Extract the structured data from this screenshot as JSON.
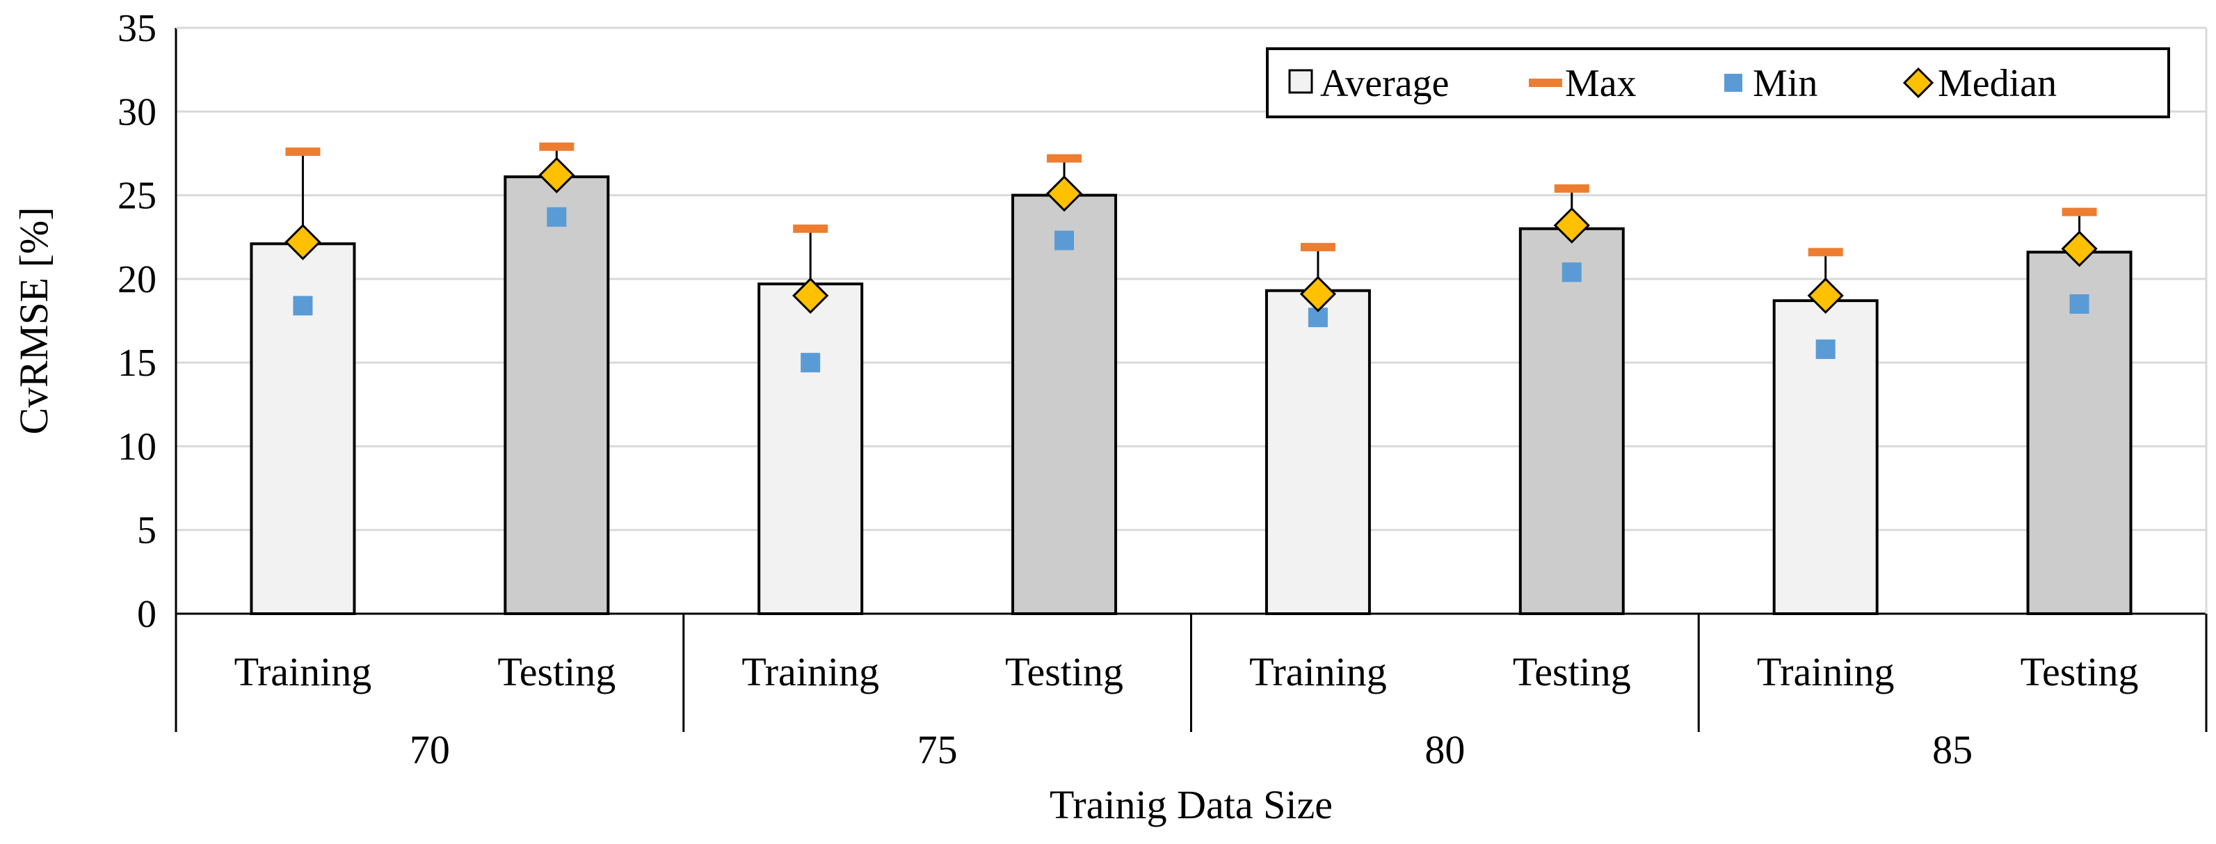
{
  "chart_data": {
    "type": "bar",
    "title": "",
    "xlabel": "Trainig Data Size",
    "ylabel": "CvRMSE [%]",
    "ylim": [
      0,
      35
    ],
    "yticks": [
      0,
      5,
      10,
      15,
      20,
      25,
      30,
      35
    ],
    "grid": true,
    "legend_position": "top-right",
    "groups": [
      "70",
      "75",
      "80",
      "85"
    ],
    "subcategories": [
      "Training",
      "Testing"
    ],
    "bars": [
      {
        "group": "70",
        "label": "Training",
        "average": 22.1,
        "max": 27.6,
        "min": 18.4,
        "median": 22.2
      },
      {
        "group": "70",
        "label": "Testing",
        "average": 26.1,
        "max": 27.9,
        "min": 23.7,
        "median": 26.2
      },
      {
        "group": "75",
        "label": "Training",
        "average": 19.7,
        "max": 23.0,
        "min": 15.0,
        "median": 19.0
      },
      {
        "group": "75",
        "label": "Testing",
        "average": 25.0,
        "max": 27.2,
        "min": 22.3,
        "median": 25.1
      },
      {
        "group": "80",
        "label": "Training",
        "average": 19.3,
        "max": 21.9,
        "min": 17.7,
        "median": 19.1
      },
      {
        "group": "80",
        "label": "Testing",
        "average": 23.0,
        "max": 25.4,
        "min": 20.4,
        "median": 23.2
      },
      {
        "group": "85",
        "label": "Training",
        "average": 18.7,
        "max": 21.6,
        "min": 15.8,
        "median": 19.0
      },
      {
        "group": "85",
        "label": "Testing",
        "average": 21.6,
        "max": 24.0,
        "min": 18.5,
        "median": 21.8
      }
    ],
    "legend": [
      "Average",
      "Max",
      "Min",
      "Median"
    ],
    "colors": {
      "training_fill": "#f2f2f2",
      "testing_fill": "#cccccc",
      "bar_stroke": "#000000",
      "max_marker": "#ed7d31",
      "min_marker": "#5b9bd5",
      "median_marker": "#ffc000",
      "gridline": "#d9d9d9"
    }
  }
}
